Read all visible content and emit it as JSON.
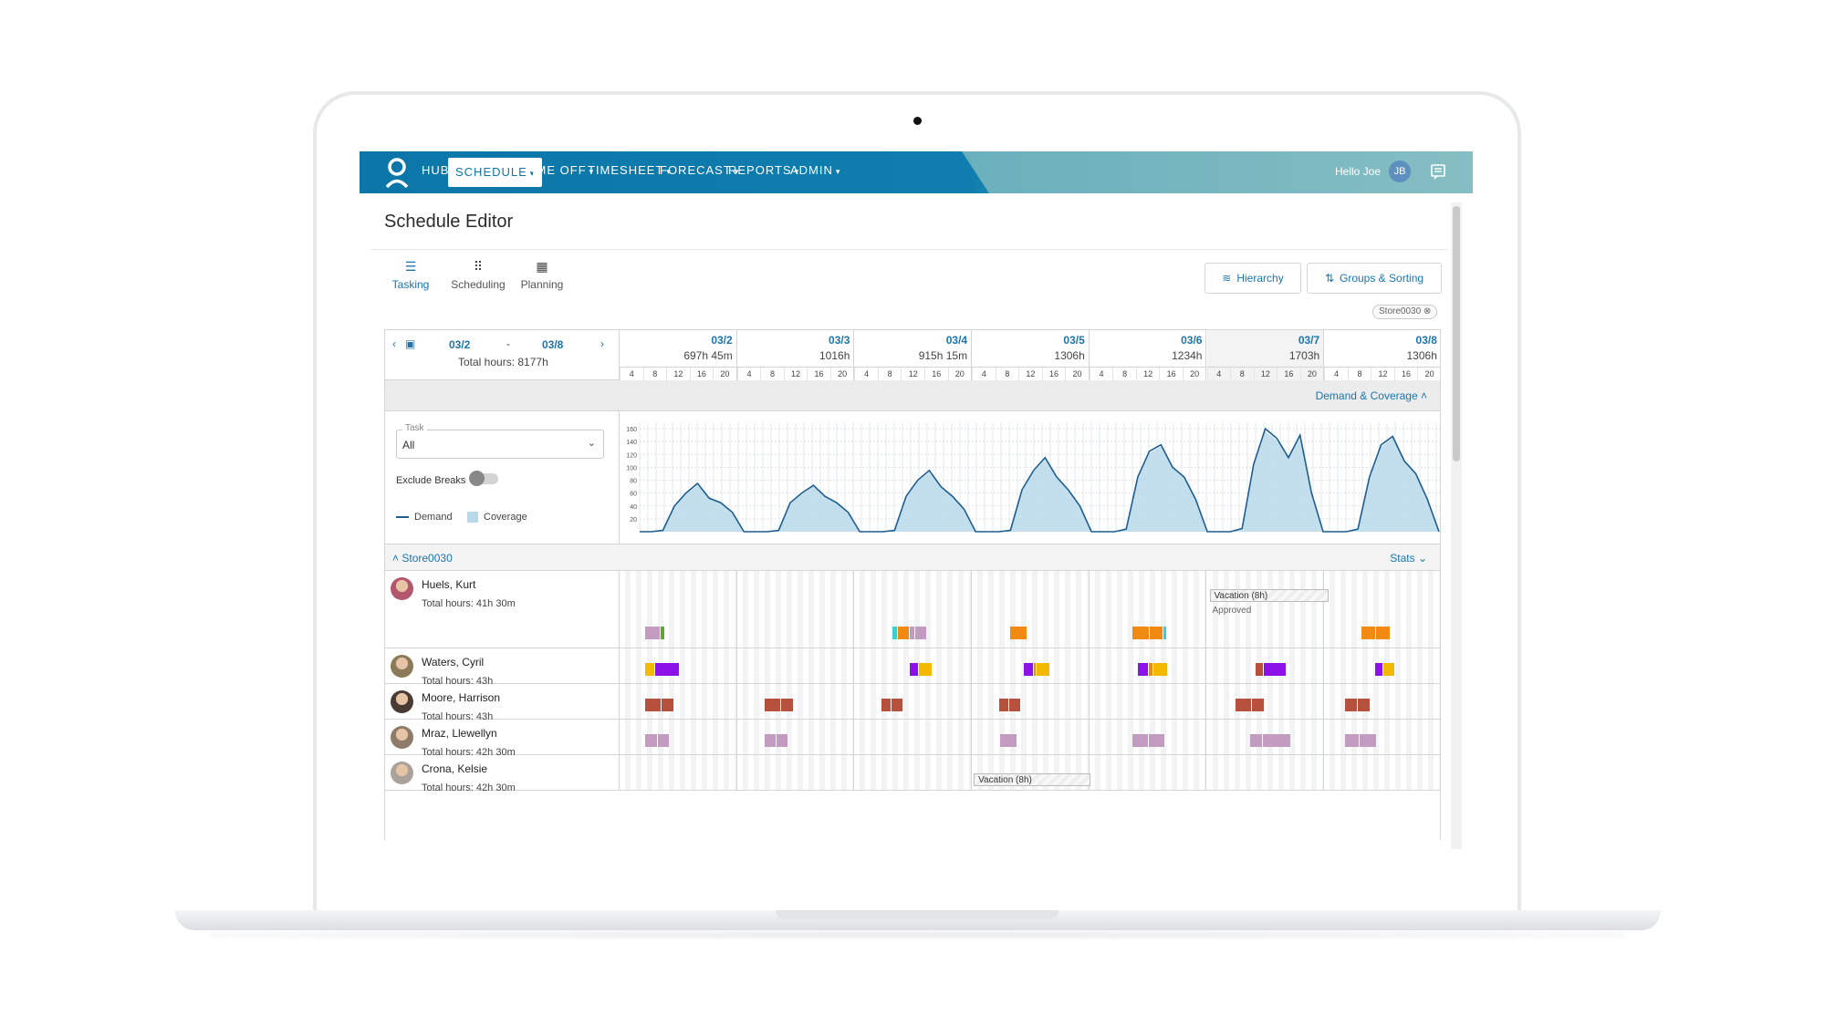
{
  "nav": {
    "items": [
      {
        "label": "HUB",
        "chev": ""
      },
      {
        "label": "SCHEDULE",
        "chev": "▾"
      },
      {
        "label": "TIME OFF",
        "chev": "▾"
      },
      {
        "label": "TIMESHEET",
        "chev": "▾"
      },
      {
        "label": "FORECAST",
        "chev": "▾"
      },
      {
        "label": "REPORTS",
        "chev": "▾"
      },
      {
        "label": "ADMIN",
        "chev": "▾"
      }
    ],
    "active": "SCHEDULE",
    "greeting": "Hello Joe",
    "user_initials": "JB"
  },
  "page": {
    "title": "Schedule Editor",
    "view_tabs": [
      {
        "label": "Tasking",
        "icon": "list-icon",
        "glyph": "☰",
        "active": true
      },
      {
        "label": "Scheduling",
        "icon": "dots-grid-icon",
        "glyph": "⠿",
        "active": false
      },
      {
        "label": "Planning",
        "icon": "grid-icon",
        "glyph": "▦",
        "active": false
      }
    ],
    "hierarchy_button": "Hierarchy",
    "groups_button": "Groups & Sorting",
    "store_chip": "Store0030"
  },
  "date_range": {
    "start": "03/2",
    "separator": "-",
    "end": "03/8",
    "total": "Total hours: 8177h"
  },
  "days": [
    {
      "date": "03/2",
      "hours": "697h 45m"
    },
    {
      "date": "03/3",
      "hours": "1016h"
    },
    {
      "date": "03/4",
      "hours": "915h 15m"
    },
    {
      "date": "03/5",
      "hours": "1306h"
    },
    {
      "date": "03/6",
      "hours": "1234h"
    },
    {
      "date": "03/7",
      "hours": "1703h"
    },
    {
      "date": "03/8",
      "hours": "1306h"
    }
  ],
  "hour_ticks": [
    "4",
    "8",
    "12",
    "16",
    "20"
  ],
  "demand_coverage": {
    "label": "Demand & Coverage",
    "task_label": "Task",
    "task_value": "All",
    "exclude_breaks": "Exclude Breaks",
    "exclude_breaks_on": false,
    "legend_demand": "Demand",
    "legend_coverage": "Coverage"
  },
  "chart_data": {
    "type": "area",
    "series": [
      {
        "name": "Demand",
        "values": [
          0,
          0,
          2,
          40,
          60,
          75,
          52,
          45,
          30,
          0,
          0,
          0,
          2,
          45,
          60,
          72,
          55,
          45,
          30,
          0,
          0,
          0,
          2,
          55,
          80,
          95,
          70,
          55,
          35,
          0,
          0,
          0,
          2,
          65,
          95,
          115,
          85,
          65,
          40,
          0,
          0,
          0,
          4,
          85,
          125,
          135,
          100,
          85,
          50,
          0,
          0,
          0,
          5,
          105,
          160,
          145,
          115,
          150,
          60,
          0,
          0,
          0,
          4,
          85,
          135,
          148,
          110,
          90,
          50,
          0
        ]
      },
      {
        "name": "Coverage",
        "values": [
          0,
          0,
          2,
          38,
          58,
          72,
          54,
          44,
          28,
          0,
          0,
          0,
          2,
          43,
          58,
          70,
          56,
          44,
          28,
          0,
          0,
          0,
          2,
          53,
          78,
          92,
          72,
          54,
          33,
          0,
          0,
          0,
          2,
          62,
          93,
          112,
          86,
          64,
          38,
          0,
          0,
          0,
          4,
          82,
          122,
          132,
          102,
          84,
          48,
          0,
          0,
          0,
          5,
          102,
          156,
          142,
          116,
          146,
          58,
          0,
          0,
          0,
          4,
          82,
          132,
          146,
          112,
          88,
          48,
          0
        ]
      }
    ],
    "y_ticks": [
      "160",
      "140",
      "120",
      "100",
      "80",
      "60",
      "40",
      "20"
    ],
    "ylim": [
      0,
      170
    ],
    "colors": {
      "demand": "#1e5d8f",
      "coverage": "#b8d9ea"
    }
  },
  "store": {
    "name": "Store0030",
    "stats_label": "Stats"
  },
  "employees": [
    {
      "name": "Huels, Kurt",
      "total": "Total hours: 41h 30m",
      "avatar_color": "#b4566e"
    },
    {
      "name": "Waters, Cyril",
      "total": "Total hours: 43h",
      "avatar_color": "#8a7a5a"
    },
    {
      "name": "Moore, Harrison",
      "total": "Total hours: 43h",
      "avatar_color": "#4a3a34"
    },
    {
      "name": "Mraz, Llewellyn",
      "total": "Total hours: 42h 30m",
      "avatar_color": "#8e7b6a"
    },
    {
      "name": "Crona, Kelsie",
      "total": "Total hours: 42h 30m",
      "avatar_color": "#a9a29a"
    }
  ],
  "vacations": [
    {
      "label": "Vacation (8h)",
      "status": "Approved"
    },
    {
      "label": "Vacation (8h)",
      "status": ""
    }
  ],
  "colors": {
    "accent": "#1a75b0",
    "nav": "#0c76a8",
    "orange": "#f08a12",
    "purple": "#8c10e8",
    "yellow": "#f5b800",
    "brick": "#b5513c",
    "mauve": "#c49bc0",
    "teal": "#3ccfd0",
    "green": "#5ea43b"
  }
}
